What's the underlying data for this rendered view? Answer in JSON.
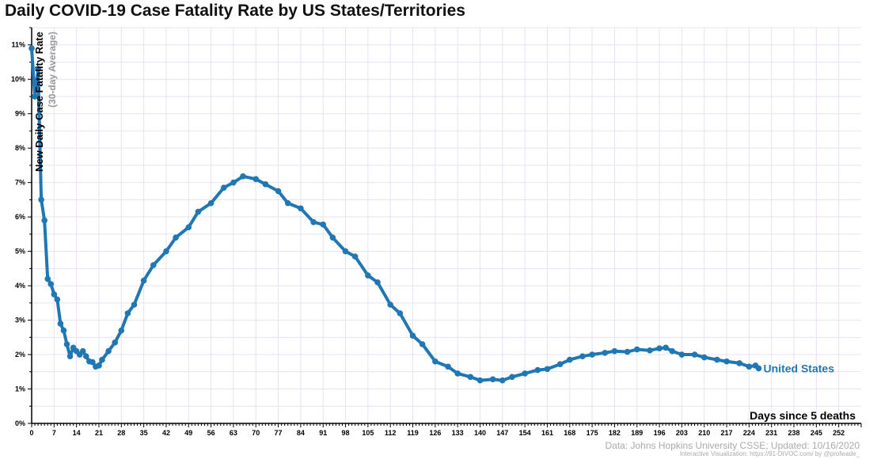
{
  "title": "Daily COVID-19 Case Fatality Rate by US States/Territories",
  "credits": {
    "data": "Data: Johns Hopkins University CSSE; Updated: 10/16/2020",
    "visualization": "Interactive Visualization: https://91-DIVOC.com/ by @profwade_"
  },
  "colors": {
    "series": "#1f77b4",
    "grid": "#e8e0f4",
    "axis": "#000000"
  },
  "chart_data": {
    "type": "line",
    "title": "Daily COVID-19 Case Fatality Rate by US States/Territories",
    "xlabel": "Days since 5 deaths",
    "ylabel": "New Daily Case Fatality Rate",
    "ylabel_sub": "(30-day Average)",
    "xlim": [
      0,
      259
    ],
    "ylim": [
      0,
      11.5
    ],
    "x_ticks": [
      0,
      7,
      14,
      21,
      28,
      35,
      42,
      49,
      56,
      63,
      70,
      77,
      84,
      91,
      98,
      105,
      112,
      119,
      126,
      133,
      140,
      147,
      154,
      161,
      168,
      175,
      182,
      189,
      196,
      203,
      210,
      217,
      224,
      231,
      238,
      245,
      252
    ],
    "x_tick_labels": [
      "0",
      "7",
      "14",
      "21",
      "28",
      "35",
      "42",
      "49",
      "56",
      "63",
      "70",
      "77",
      "84",
      "91",
      "98",
      "105",
      "112",
      "119",
      "126",
      "133",
      "140",
      "147",
      "154",
      "161",
      "168",
      "175",
      "182",
      "189",
      "196",
      "203",
      "210",
      "217",
      "224",
      "231",
      "238",
      "245",
      "252"
    ],
    "y_ticks": [
      0,
      1,
      2,
      3,
      4,
      5,
      6,
      7,
      8,
      9,
      10,
      11
    ],
    "y_tick_labels": [
      "0%",
      "1%",
      "2%",
      "3%",
      "4%",
      "5%",
      "6%",
      "7%",
      "8%",
      "9%",
      "10%",
      "11%"
    ],
    "grid": true,
    "legend": "none",
    "series": [
      {
        "name": "United States",
        "x": [
          0,
          1,
          2,
          3,
          4,
          5,
          6,
          7,
          8,
          9,
          10,
          11,
          12,
          13,
          14,
          15,
          16,
          17,
          18,
          19,
          20,
          21,
          22,
          24,
          26,
          28,
          30,
          32,
          35,
          38,
          42,
          45,
          49,
          52,
          56,
          60,
          63,
          66,
          70,
          73,
          77,
          80,
          84,
          88,
          91,
          94,
          98,
          101,
          105,
          108,
          112,
          115,
          119,
          122,
          126,
          130,
          133,
          137,
          140,
          144,
          147,
          150,
          154,
          158,
          161,
          165,
          168,
          172,
          175,
          179,
          182,
          186,
          189,
          193,
          196,
          198,
          200,
          203,
          207,
          210,
          214,
          217,
          221,
          224,
          226,
          227
        ],
        "values": [
          10.9,
          9.5,
          10.3,
          6.5,
          5.9,
          4.2,
          4.05,
          3.75,
          3.6,
          2.9,
          2.7,
          2.3,
          1.95,
          2.2,
          2.1,
          2.0,
          2.1,
          1.95,
          1.8,
          1.78,
          1.65,
          1.68,
          1.85,
          2.1,
          2.35,
          2.7,
          3.2,
          3.45,
          4.15,
          4.6,
          5.0,
          5.4,
          5.7,
          6.15,
          6.4,
          6.85,
          7.0,
          7.18,
          7.1,
          6.95,
          6.75,
          6.4,
          6.25,
          5.85,
          5.78,
          5.4,
          5.0,
          4.85,
          4.3,
          4.1,
          3.45,
          3.2,
          2.55,
          2.3,
          1.8,
          1.65,
          1.45,
          1.35,
          1.25,
          1.28,
          1.25,
          1.35,
          1.45,
          1.55,
          1.58,
          1.72,
          1.85,
          1.95,
          2.0,
          2.05,
          2.1,
          2.08,
          2.15,
          2.12,
          2.18,
          2.2,
          2.1,
          2.0,
          2.0,
          1.92,
          1.85,
          1.8,
          1.75,
          1.65,
          1.68,
          1.6
        ],
        "label": "United States"
      }
    ]
  }
}
